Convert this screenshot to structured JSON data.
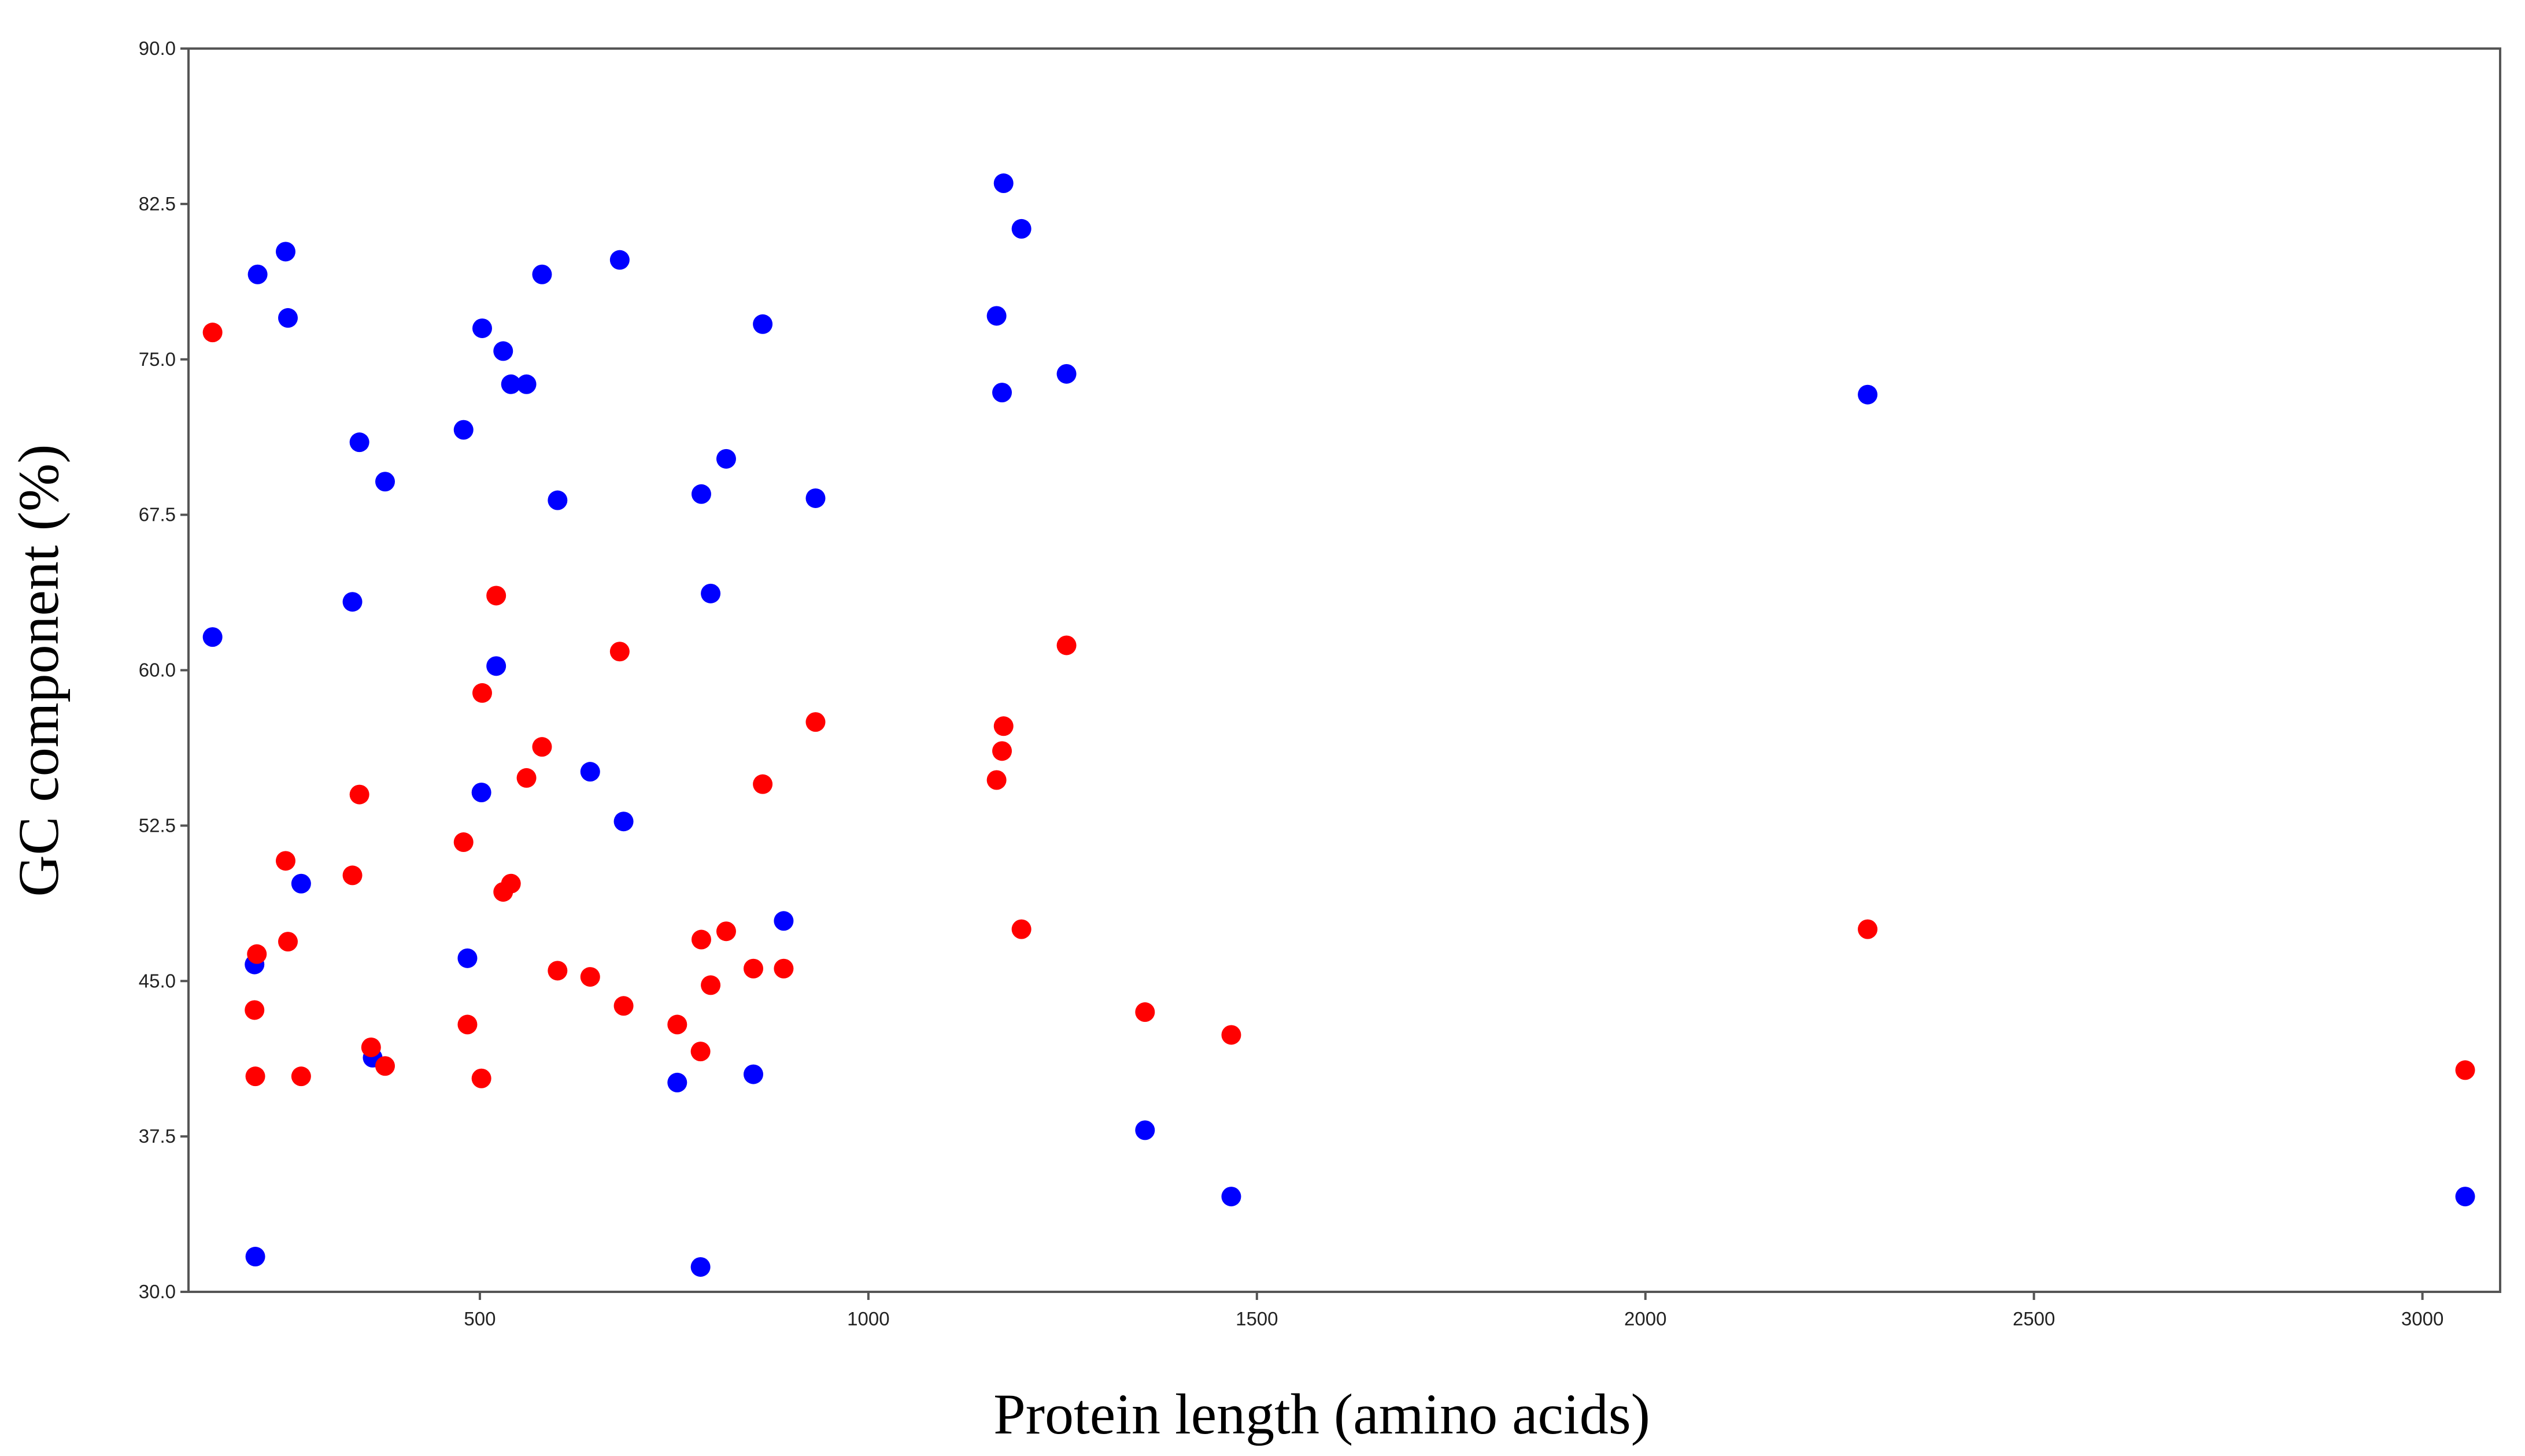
{
  "chart_data": {
    "type": "scatter",
    "title": "",
    "xlabel": "Protein length (amino acids)",
    "ylabel": "GC component (%)",
    "xlim": [
      125,
      3100
    ],
    "ylim": [
      30,
      90
    ],
    "x_ticks": [
      {
        "value": 500,
        "label": "500"
      },
      {
        "value": 1000,
        "label": "1000"
      },
      {
        "value": 1500,
        "label": "1500"
      },
      {
        "value": 2000,
        "label": "2000"
      },
      {
        "value": 2500,
        "label": "2500"
      },
      {
        "value": 3000,
        "label": "3000"
      }
    ],
    "y_ticks": [
      {
        "value": 30,
        "label": "30.0"
      },
      {
        "value": 37.5,
        "label": "37.5"
      },
      {
        "value": 45,
        "label": "45.0"
      },
      {
        "value": 52.5,
        "label": "52.5"
      },
      {
        "value": 60,
        "label": "60.0"
      },
      {
        "value": 67.5,
        "label": "67.5"
      },
      {
        "value": 75,
        "label": "75.0"
      },
      {
        "value": 82.5,
        "label": "82.5"
      },
      {
        "value": 90,
        "label": "90.0"
      }
    ],
    "grid": false,
    "legend": "none",
    "series": [
      {
        "name": "blue",
        "color": "#0000ff",
        "points": [
          [
            156,
            61.6
          ],
          [
            214,
            79.1
          ],
          [
            210,
            45.8
          ],
          [
            211,
            31.7
          ],
          [
            250,
            80.2
          ],
          [
            253,
            77.0
          ],
          [
            270,
            49.7
          ],
          [
            336,
            63.3
          ],
          [
            345,
            71.0
          ],
          [
            362,
            41.3
          ],
          [
            378,
            69.1
          ],
          [
            479,
            71.6
          ],
          [
            484,
            46.1
          ],
          [
            502,
            54.1
          ],
          [
            503,
            76.5
          ],
          [
            521,
            60.2
          ],
          [
            530,
            75.4
          ],
          [
            540,
            73.8
          ],
          [
            560,
            73.8
          ],
          [
            580,
            79.1
          ],
          [
            600,
            68.2
          ],
          [
            642,
            55.1
          ],
          [
            680,
            79.8
          ],
          [
            685,
            52.7
          ],
          [
            754,
            40.1
          ],
          [
            784,
            31.2
          ],
          [
            785,
            68.5
          ],
          [
            797,
            63.7
          ],
          [
            817,
            70.2
          ],
          [
            852,
            40.5
          ],
          [
            864,
            76.7
          ],
          [
            891,
            47.9
          ],
          [
            932,
            68.3
          ],
          [
            1165,
            77.1
          ],
          [
            1172,
            73.4
          ],
          [
            1174,
            83.5
          ],
          [
            1197,
            81.3
          ],
          [
            1255,
            74.3
          ],
          [
            1356,
            37.8
          ],
          [
            1467,
            34.6
          ],
          [
            2286,
            73.3
          ],
          [
            3055,
            34.6
          ]
        ]
      },
      {
        "name": "red",
        "color": "#ff0000",
        "points": [
          [
            156,
            76.3
          ],
          [
            210,
            43.6
          ],
          [
            211,
            40.4
          ],
          [
            213,
            46.3
          ],
          [
            250,
            50.8
          ],
          [
            253,
            46.9
          ],
          [
            270,
            40.4
          ],
          [
            336,
            50.1
          ],
          [
            345,
            54.0
          ],
          [
            360,
            41.8
          ],
          [
            378,
            40.9
          ],
          [
            479,
            51.7
          ],
          [
            484,
            42.9
          ],
          [
            502,
            40.3
          ],
          [
            503,
            58.9
          ],
          [
            521,
            63.6
          ],
          [
            530,
            49.3
          ],
          [
            540,
            49.7
          ],
          [
            560,
            54.8
          ],
          [
            580,
            56.3
          ],
          [
            600,
            45.5
          ],
          [
            642,
            45.2
          ],
          [
            680,
            60.9
          ],
          [
            685,
            43.8
          ],
          [
            754,
            42.9
          ],
          [
            784,
            41.6
          ],
          [
            785,
            47.0
          ],
          [
            797,
            44.8
          ],
          [
            817,
            47.4
          ],
          [
            852,
            45.6
          ],
          [
            864,
            54.5
          ],
          [
            891,
            45.6
          ],
          [
            932,
            57.5
          ],
          [
            1165,
            54.7
          ],
          [
            1172,
            56.1
          ],
          [
            1174,
            57.3
          ],
          [
            1197,
            47.5
          ],
          [
            1255,
            61.2
          ],
          [
            1356,
            43.5
          ],
          [
            1467,
            42.4
          ],
          [
            2286,
            47.5
          ],
          [
            3055,
            40.7
          ]
        ]
      }
    ]
  }
}
